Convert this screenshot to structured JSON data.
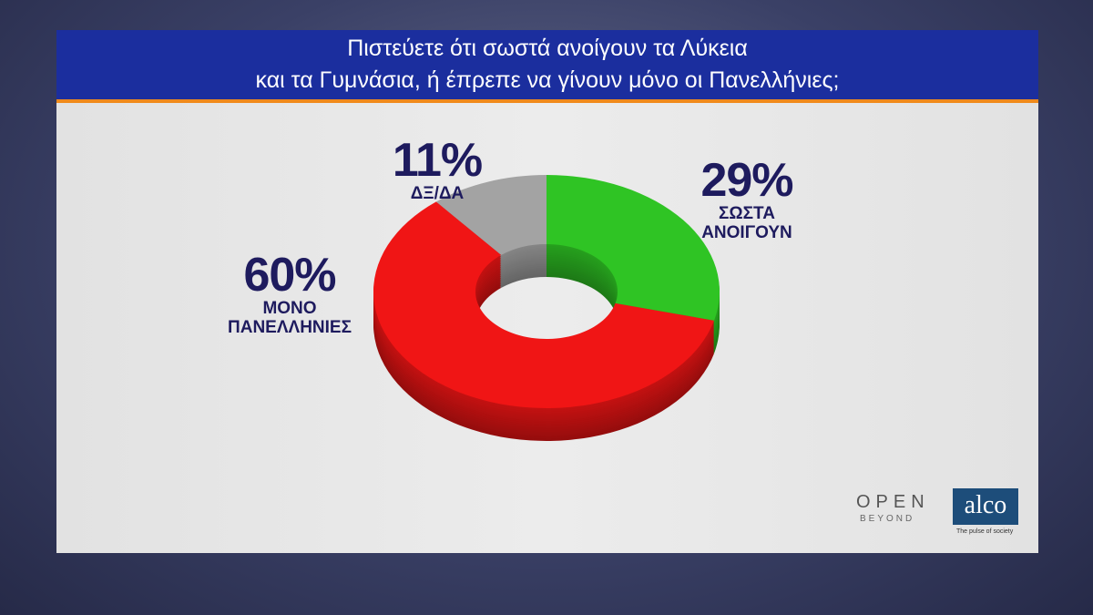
{
  "chart_data": {
    "type": "donut",
    "title": "Πιστεύετε ότι σωστά ανοίγουν τα Λύκεια\nκαι τα Γυμνάσια, ή έπρεπε να γίνουν μόνο οι Πανελλήνιες;",
    "categories": [
      "ΣΩΣΤΑ\nΑΝΟΙΓΟΥΝ",
      "ΜΟΝΟ\nΠΑΝΕΛΛΗΝΙΕΣ",
      "ΔΞ/ΔΑ"
    ],
    "values": [
      29,
      60,
      11
    ],
    "value_labels": [
      "29%",
      "60%",
      "11%"
    ],
    "colors": [
      "#2fc424",
      "#f01515",
      "#a3a3a3"
    ]
  },
  "logos": {
    "open": "OPEN",
    "beyond": "BEYOND",
    "alco": "alco",
    "alco_tagline": "The pulse of society"
  }
}
